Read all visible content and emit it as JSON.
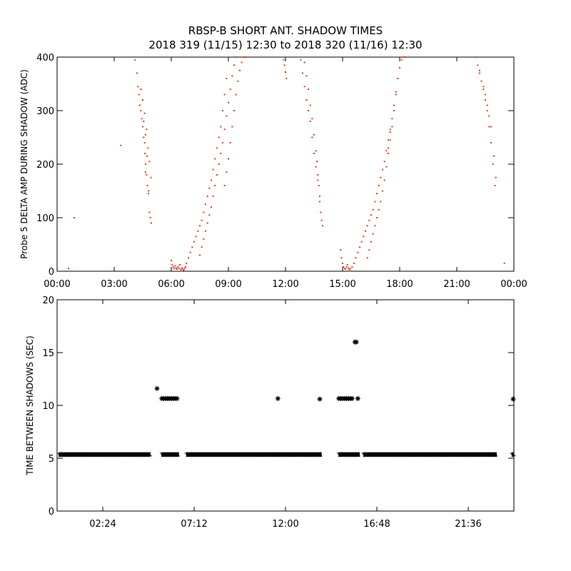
{
  "header": {
    "title_line1": "RBSP-B SHORT ANT. SHADOW TIMES",
    "title_line2": "2018 319 (11/15) 12:30 to 2018 320 (11/16) 12:30"
  },
  "chart_data": [
    {
      "type": "scatter",
      "ylabel": "Probe 5 DELTA AMP DURING SHADOW (ADC)",
      "xlabel": "",
      "x_unit": "hours",
      "xlim": [
        0,
        24
      ],
      "ylim": [
        0,
        400
      ],
      "xtick_values": [
        0,
        3,
        6,
        9,
        12,
        15,
        18,
        21,
        24
      ],
      "xtick_labels": [
        "00:00",
        "03:00",
        "06:00",
        "09:00",
        "12:00",
        "15:00",
        "18:00",
        "21:00",
        "00:00"
      ],
      "ytick_values": [
        0,
        100,
        200,
        300,
        400
      ],
      "ytick_labels": [
        "0",
        "100",
        "200",
        "300",
        "400"
      ],
      "color": "#e83a1e",
      "grid": false,
      "series": [
        {
          "x": [
            4.1,
            4.2,
            4.25,
            4.3,
            4.35,
            4.4,
            4.45,
            4.5,
            4.55,
            4.6,
            4.62,
            4.65,
            4.7,
            4.75,
            4.8,
            4.85,
            4.9,
            4.95,
            4.4,
            4.5,
            4.6,
            4.7,
            4.78,
            4.85,
            4.93,
            4.55,
            4.65,
            4.72,
            4.8,
            3.35,
            4.65,
            0.9,
            6.0,
            6.05,
            6.1,
            6.15,
            6.2,
            6.25,
            6.3,
            6.35,
            6.4,
            6.45,
            6.5,
            6.55,
            6.6,
            6.65,
            6.7,
            6.75,
            6.8,
            6.9,
            7.0,
            7.1,
            7.2,
            7.3,
            7.4,
            7.5,
            7.6,
            7.7,
            7.8,
            7.9,
            8.0,
            8.1,
            8.2,
            8.3,
            8.4,
            8.5,
            8.6,
            8.7,
            8.8,
            8.9,
            7.5,
            7.6,
            7.7,
            7.8,
            7.9,
            8.0,
            8.1,
            8.2,
            8.3,
            8.4,
            8.5,
            8.6,
            8.7,
            8.8,
            8.9,
            9.0,
            9.1,
            9.2,
            9.3,
            9.4,
            8.8,
            8.9,
            9.0,
            9.1,
            9.2,
            9.3,
            9.4,
            9.5,
            9.6,
            9.7,
            9.8,
            9.9,
            11.9,
            11.95,
            12.0,
            12.05,
            12.8,
            12.9,
            13.0,
            13.1,
            13.2,
            13.3,
            13.4,
            13.5,
            13.6,
            13.7,
            13.8,
            13.0,
            13.1,
            13.2,
            13.3,
            13.4,
            13.5,
            13.6,
            13.65,
            13.7,
            13.75,
            13.8,
            13.85,
            13.9,
            13.95,
            14.9,
            14.95,
            15.0,
            15.05,
            15.1,
            15.15,
            15.2,
            15.25,
            15.3,
            15.35,
            15.4,
            15.5,
            15.6,
            15.7,
            15.8,
            15.9,
            16.0,
            16.1,
            16.2,
            16.3,
            16.4,
            16.5,
            16.6,
            16.7,
            16.8,
            16.9,
            17.0,
            17.1,
            17.2,
            17.3,
            17.4,
            17.5,
            16.3,
            16.4,
            16.5,
            16.6,
            16.7,
            16.8,
            16.9,
            17.0,
            17.1,
            17.2,
            17.3,
            17.4,
            17.5,
            17.6,
            17.7,
            17.8,
            17.9,
            17.4,
            17.5,
            17.6,
            17.7,
            17.8,
            17.9,
            18.0,
            18.1,
            18.2,
            18.3,
            22.0,
            22.1,
            22.2,
            22.3,
            22.4,
            22.5,
            22.6,
            22.7,
            22.8,
            22.9,
            23.0,
            22.2,
            22.4,
            22.6,
            22.8,
            22.95,
            23.05,
            22.5,
            22.7,
            23.5,
            0.6
          ],
          "y": [
            395,
            370,
            345,
            330,
            310,
            300,
            285,
            270,
            250,
            240,
            220,
            200,
            180,
            160,
            145,
            110,
            100,
            90,
            340,
            320,
            295,
            265,
            230,
            205,
            175,
            280,
            255,
            215,
            150,
            235,
            185,
            100,
            20,
            12,
            8,
            5,
            10,
            6,
            4,
            8,
            5,
            12,
            3,
            6,
            4,
            2,
            5,
            8,
            15,
            25,
            35,
            45,
            55,
            65,
            75,
            85,
            95,
            110,
            125,
            140,
            155,
            170,
            190,
            210,
            230,
            250,
            270,
            300,
            330,
            360,
            30,
            45,
            60,
            75,
            90,
            105,
            120,
            140,
            160,
            180,
            200,
            220,
            240,
            265,
            290,
            315,
            340,
            365,
            385,
            400,
            160,
            185,
            210,
            240,
            270,
            300,
            330,
            355,
            375,
            390,
            400,
            410,
            395,
            385,
            372,
            360,
            395,
            370,
            345,
            320,
            300,
            280,
            250,
            220,
            195,
            170,
            140,
            390,
            365,
            340,
            310,
            285,
            255,
            225,
            205,
            180,
            160,
            130,
            110,
            95,
            85,
            40,
            25,
            15,
            8,
            5,
            4,
            8,
            12,
            6,
            3,
            5,
            8,
            15,
            25,
            35,
            45,
            55,
            65,
            75,
            85,
            95,
            105,
            115,
            130,
            145,
            160,
            175,
            190,
            205,
            225,
            245,
            265,
            25,
            40,
            55,
            70,
            85,
            100,
            115,
            130,
            150,
            170,
            195,
            220,
            245,
            270,
            300,
            330,
            360,
            230,
            260,
            285,
            310,
            335,
            360,
            380,
            395,
            400,
            405,
            400,
            385,
            370,
            355,
            340,
            320,
            300,
            270,
            240,
            200,
            160,
            375,
            345,
            310,
            270,
            215,
            175,
            330,
            290,
            15,
            5
          ]
        }
      ]
    },
    {
      "type": "scatter",
      "ylabel": "TIME BETWEEN SHADOWS (SEC)",
      "xlabel": "",
      "xlim": [
        0,
        24
      ],
      "ylim": [
        0,
        20
      ],
      "xtick_values": [
        2.4,
        7.2,
        12.0,
        16.8,
        21.6
      ],
      "xtick_labels": [
        "02:24",
        "07:12",
        "12:00",
        "16:48",
        "21:36"
      ],
      "ytick_values": [
        0,
        5,
        10,
        15,
        20
      ],
      "ytick_labels": [
        "0",
        "5",
        "10",
        "15",
        "20"
      ],
      "marker": "asterisk",
      "color": "#000000",
      "grid": false,
      "series": [
        {
          "baseline": {
            "y": 5.35,
            "segments": [
              [
                0.1,
                4.9
              ],
              [
                5.5,
                6.4
              ],
              [
                6.8,
                13.9
              ],
              [
                14.8,
                15.9
              ],
              [
                16.1,
                23.1
              ],
              [
                23.9,
                24.0
              ]
            ]
          },
          "points": {
            "x": [
              5.5,
              5.6,
              5.7,
              5.8,
              5.9,
              6.0,
              6.1,
              6.2,
              6.3,
              5.25,
              11.6,
              13.8,
              14.8,
              14.9,
              15.0,
              15.1,
              15.2,
              15.3,
              15.4,
              15.5,
              15.65,
              15.72,
              15.8,
              24.0
            ],
            "y": [
              10.65,
              10.65,
              10.65,
              10.65,
              10.65,
              10.65,
              10.65,
              10.65,
              10.65,
              11.6,
              10.65,
              10.6,
              10.65,
              10.65,
              10.65,
              10.65,
              10.65,
              10.65,
              10.65,
              10.65,
              16.0,
              16.0,
              10.65,
              10.6
            ]
          }
        }
      ]
    }
  ]
}
